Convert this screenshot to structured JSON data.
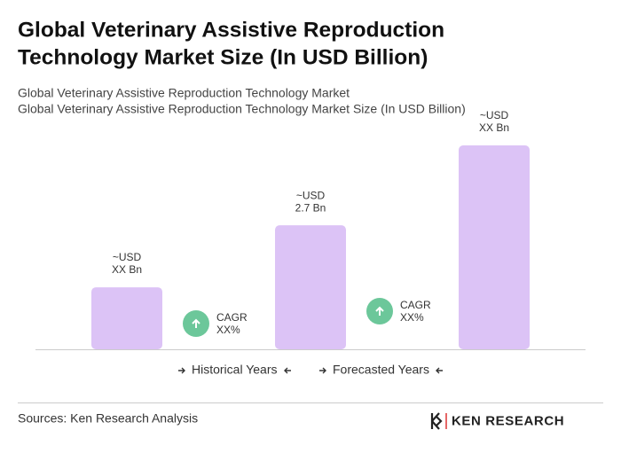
{
  "chart_data": {
    "type": "bar",
    "title_lines": [
      "Global Veterinary Assistive Reproduction",
      "Technology Market Size (In USD Billion)"
    ],
    "subtitle_lines": [
      "Global Veterinary Assistive Reproduction Technology Market",
      "Global Veterinary Assistive Reproduction Technology Market Size (In USD Billion)"
    ],
    "categories": [
      null,
      null,
      null
    ],
    "values": [
      1.35,
      2.7,
      4.44
    ],
    "value_labels": [
      [
        "~USD",
        "XX Bn"
      ],
      [
        "~USD",
        "2.7 Bn"
      ],
      [
        "~USD",
        "XX Bn"
      ]
    ],
    "color": "#dcc3f6",
    "annotations": [
      [
        "CAGR",
        "XX%"
      ],
      [
        "CAGR",
        "XX%"
      ]
    ],
    "legend": [
      "Historical Years",
      "Forecasted Years"
    ],
    "source": "Sources: Ken Research Analysis",
    "logo": "KEN RESEARCH"
  }
}
